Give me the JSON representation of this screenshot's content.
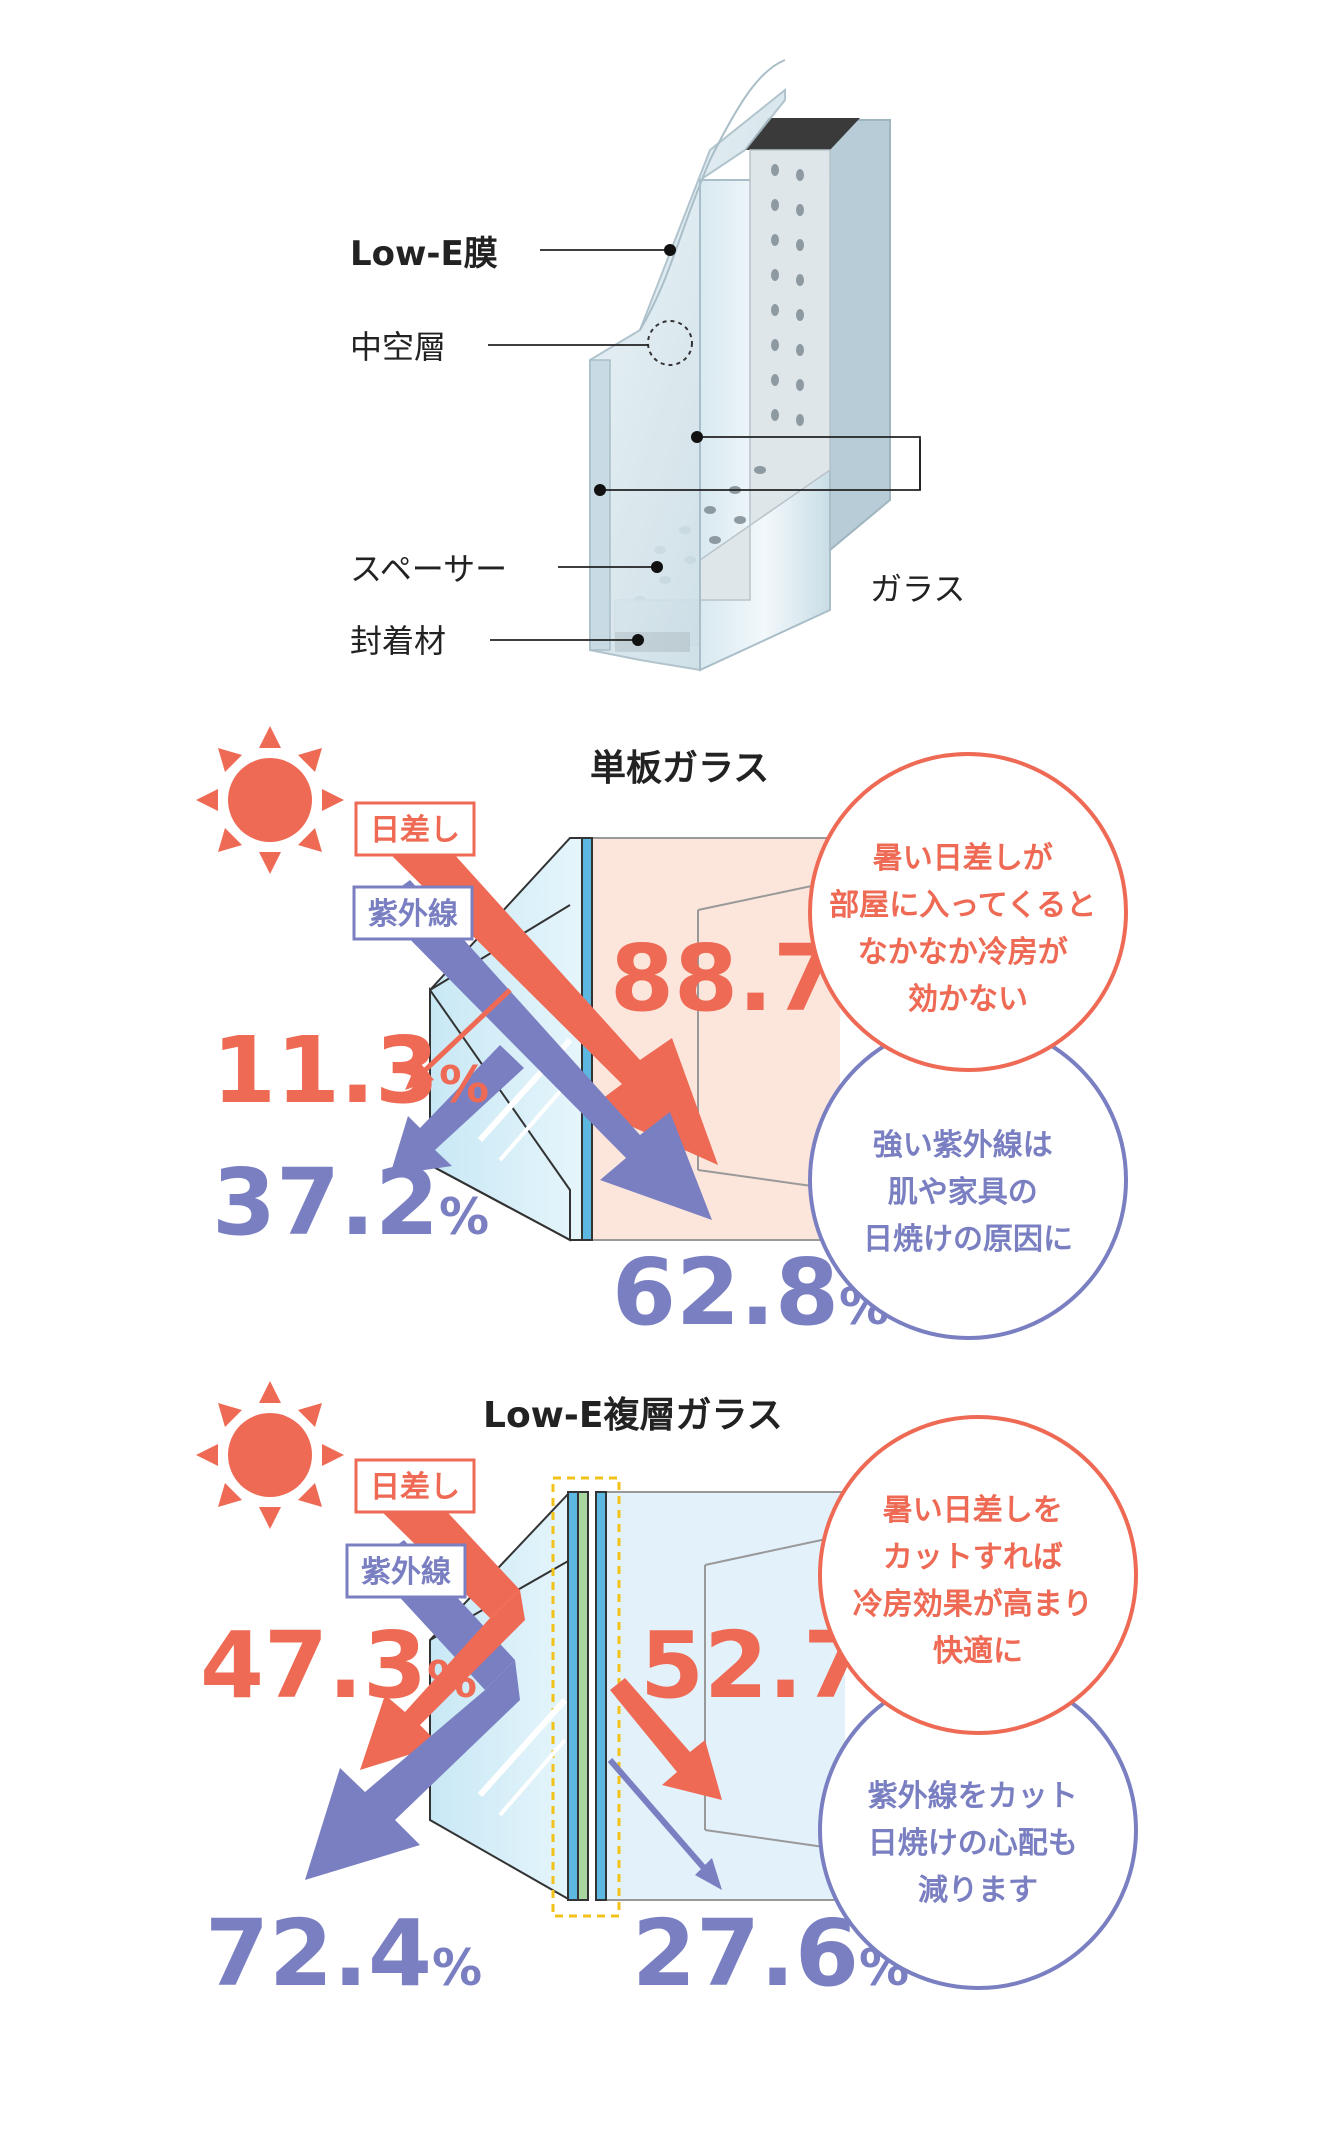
{
  "colors": {
    "sunlight": "#ee6a55",
    "uv": "#7a7fc2",
    "glass_edge": "#5cb8e0",
    "lowe_film": "#a8d5a0",
    "highlight": "#f2c21b",
    "room_single": "#fce6dc",
    "room_lowe": "#e3f1fa"
  },
  "cross_section": {
    "labels": {
      "lowe_film": "Low-E膜",
      "air_layer": "中空層",
      "spacer": "スペーサー",
      "sealant": "封着材",
      "glass": "ガラス"
    }
  },
  "single_glass": {
    "title": "単板ガラス",
    "tag_sunlight": "日差し",
    "tag_uv": "紫外線",
    "sun_transmitted": {
      "num": "88.7",
      "unit": "%"
    },
    "sun_reflected": {
      "num": "11.3",
      "unit": "%"
    },
    "uv_reflected": {
      "num": "37.2",
      "unit": "%"
    },
    "uv_transmitted": {
      "num": "62.8",
      "unit": "%"
    },
    "bubble_sun": [
      "暑い日差しが",
      "部屋に入ってくると",
      "なかなか冷房が",
      "効かない"
    ],
    "bubble_uv": [
      "強い紫外線は",
      "肌や家具の",
      "日焼けの原因に"
    ]
  },
  "lowe_glass": {
    "title": "Low-E複層ガラス",
    "tag_sunlight": "日差し",
    "tag_uv": "紫外線",
    "sun_reflected": {
      "num": "47.3",
      "unit": "%"
    },
    "sun_transmitted": {
      "num": "52.7",
      "unit": "%"
    },
    "uv_reflected": {
      "num": "72.4",
      "unit": "%"
    },
    "uv_transmitted": {
      "num": "27.6",
      "unit": "%"
    },
    "bubble_sun": [
      "暑い日差しを",
      "カットすれば",
      "冷房効果が高まり",
      "快適に"
    ],
    "bubble_uv": [
      "紫外線をカット",
      "日焼けの心配も",
      "減ります"
    ]
  }
}
